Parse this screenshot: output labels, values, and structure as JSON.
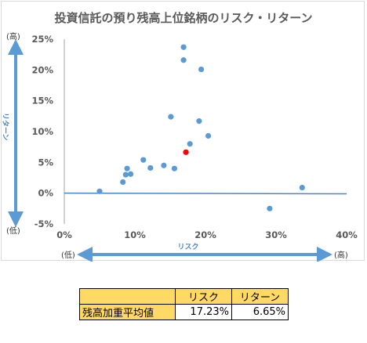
{
  "chart_data": {
    "type": "scatter",
    "title": "投資信託の預り残高上位銘柄のリスク・リターン",
    "xlabel": "リスク",
    "ylabel": "リターン",
    "x_low_label": "(低)",
    "x_high_label": "(高)",
    "y_low_label": "(低)",
    "y_high_label": "(高)",
    "xlim": [
      0,
      40
    ],
    "ylim": [
      -5,
      25
    ],
    "x_ticks": [
      "0%",
      "10%",
      "20%",
      "30%",
      "40%"
    ],
    "y_ticks": [
      "-5%",
      "0%",
      "5%",
      "10%",
      "15%",
      "20%",
      "25%"
    ],
    "series": [
      {
        "color": "#5b9bd5",
        "points": [
          [
            5.0,
            0.3
          ],
          [
            8.3,
            1.8
          ],
          [
            8.7,
            3.0
          ],
          [
            8.9,
            4.0
          ],
          [
            9.4,
            3.1
          ],
          [
            11.2,
            5.4
          ],
          [
            12.2,
            4.1
          ],
          [
            14.1,
            4.5
          ],
          [
            15.1,
            12.4
          ],
          [
            15.6,
            4.0
          ],
          [
            16.9,
            23.7
          ],
          [
            16.9,
            21.6
          ],
          [
            17.8,
            8.0
          ],
          [
            19.1,
            11.7
          ],
          [
            19.4,
            20.1
          ],
          [
            20.4,
            9.3
          ],
          [
            29.1,
            -2.5
          ],
          [
            33.7,
            0.9
          ]
        ]
      },
      {
        "color": "#ff0000",
        "points": [
          [
            17.23,
            6.65
          ]
        ]
      }
    ],
    "trend_line": [
      [
        0,
        0.0
      ],
      [
        40,
        -0.1
      ]
    ],
    "trend_color": "#4a86c5"
  },
  "table": {
    "headers": [
      "",
      "リスク",
      "リターン"
    ],
    "rows": [
      {
        "label": "残高加重平均値",
        "risk": "17.23%",
        "return": "6.65%"
      }
    ]
  }
}
